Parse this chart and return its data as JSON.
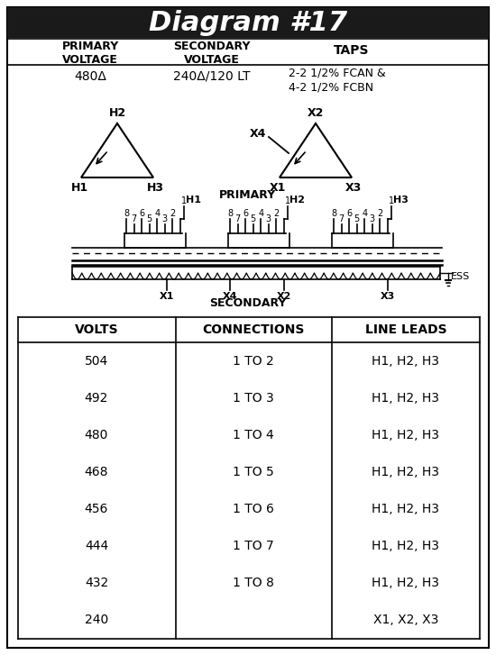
{
  "title": "Diagram #17",
  "title_bg": "#1a1a1a",
  "title_color": "#ffffff",
  "col_headers": [
    "PRIMARY\nVOLTAGE",
    "SECONDARY\nVOLTAGE",
    "TAPS"
  ],
  "primary_voltage": "480Δ",
  "secondary_voltage": "240Δ/120 LT",
  "taps": "2-2 1/2% FCAN &\n4-2 1/2% FCBN",
  "table_headers": [
    "VOLTS",
    "CONNECTIONS",
    "LINE LEADS"
  ],
  "table_data": [
    [
      "504",
      "1 TO 2",
      "H1, H2, H3"
    ],
    [
      "492",
      "1 TO 3",
      "H1, H2, H3"
    ],
    [
      "480",
      "1 TO 4",
      "H1, H2, H3"
    ],
    [
      "468",
      "1 TO 5",
      "H1, H2, H3"
    ],
    [
      "456",
      "1 TO 6",
      "H1, H2, H3"
    ],
    [
      "444",
      "1 TO 7",
      "H1, H2, H3"
    ],
    [
      "432",
      "1 TO 8",
      "H1, H2, H3"
    ],
    [
      "240",
      "",
      "X1, X2, X3"
    ]
  ],
  "bg_color": "#ffffff"
}
